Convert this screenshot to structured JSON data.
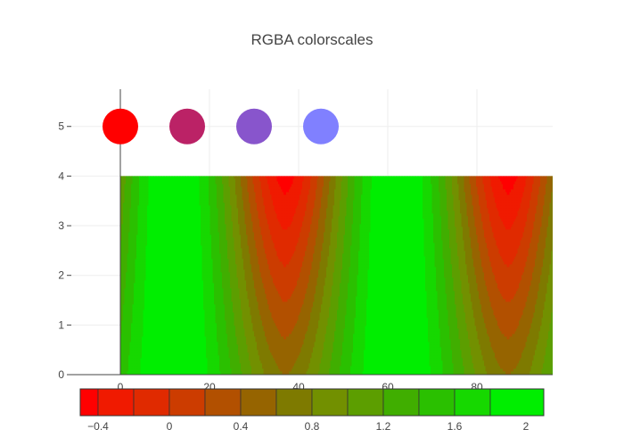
{
  "chart_data": {
    "type": "contour",
    "title": "RGBA colorscales",
    "xlabel": "",
    "ylabel": "",
    "x_axis": {
      "range": [
        -11,
        97
      ],
      "ticks": [
        0,
        20,
        40,
        60,
        80
      ],
      "tick_labels": [
        "0",
        "20",
        "40",
        "60",
        "80"
      ]
    },
    "y_axis": {
      "range": [
        0,
        5.75
      ],
      "ticks": [
        0,
        1,
        2,
        3,
        4,
        5
      ],
      "tick_labels": [
        "0",
        "1",
        "2",
        "3",
        "4",
        "5"
      ]
    },
    "grid": true,
    "scatter": {
      "type": "scatter",
      "x": [
        0,
        15,
        30,
        45
      ],
      "y": [
        5,
        5,
        5,
        5
      ],
      "colors": [
        "#ff0000",
        "#bb2266",
        "#8855cc",
        "#8080ff"
      ]
    },
    "contour": {
      "x_range": [
        0,
        99
      ],
      "y_range": [
        0,
        4
      ],
      "z_range": [
        -0.5,
        2.1
      ],
      "contour_start": -0.4,
      "contour_size": 0.2,
      "period": 50,
      "z_peak": 2.05,
      "z_min_top": -0.5,
      "z_min_bottom": 0.6
    },
    "colorbar": {
      "orientation": "horizontal",
      "range": [
        -0.5,
        2.1
      ],
      "tick_values": [
        -0.4,
        0,
        0.4,
        0.8,
        1.2,
        1.6,
        2
      ],
      "tick_labels": [
        "−0.4",
        "0",
        "0.4",
        "0.8",
        "1.2",
        "1.6",
        "2"
      ],
      "bin_colors": [
        "#ff0000",
        "#f01a00",
        "#e02a00",
        "#cc3c00",
        "#b25000",
        "#966400",
        "#7e7a00",
        "#729000",
        "#5c9e00",
        "#40ae00",
        "#2ac000",
        "#16d800",
        "#00ee00"
      ]
    }
  }
}
